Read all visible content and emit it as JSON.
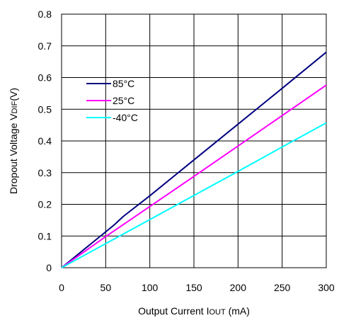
{
  "chart_data": {
    "type": "line",
    "title": "",
    "xlabel_main": "Output Current I",
    "xlabel_sub": "OUT",
    "xlabel_unit": " (mA)",
    "ylabel_main": "Dropout Voltage V",
    "ylabel_sub": "DIF",
    "ylabel_unit": "(V)",
    "xlim": [
      0,
      300
    ],
    "ylim": [
      0,
      0.8
    ],
    "xticks": [
      0,
      50,
      100,
      150,
      200,
      250,
      300
    ],
    "yticks": [
      0,
      0.1,
      0.2,
      0.3,
      0.4,
      0.5,
      0.6,
      0.7,
      0.8
    ],
    "xtick_labels": [
      "0",
      "50",
      "100",
      "150",
      "200",
      "250",
      "300"
    ],
    "ytick_labels": [
      "0",
      "0.1",
      "0.2",
      "0.3",
      "0.4",
      "0.5",
      "0.6",
      "0.7",
      "0.8"
    ],
    "grid": true,
    "legend_position": "upper-left",
    "series": [
      {
        "name": "85°C",
        "color": "#000080",
        "x": [
          0,
          50,
          60,
          70,
          100,
          150,
          200,
          250,
          300
        ],
        "y": [
          0,
          0.113,
          0.136,
          0.162,
          0.227,
          0.34,
          0.453,
          0.566,
          0.68
        ]
      },
      {
        "name": "25°C",
        "color": "#ff00ff",
        "x": [
          0,
          50,
          100,
          130,
          150,
          200,
          250,
          300
        ],
        "y": [
          0,
          0.098,
          0.193,
          0.25,
          0.288,
          0.384,
          0.48,
          0.576
        ]
      },
      {
        "name": "-40°C",
        "color": "#00ffff",
        "x": [
          0,
          50,
          100,
          150,
          200,
          250,
          300
        ],
        "y": [
          0,
          0.076,
          0.152,
          0.228,
          0.304,
          0.381,
          0.457
        ]
      }
    ]
  }
}
